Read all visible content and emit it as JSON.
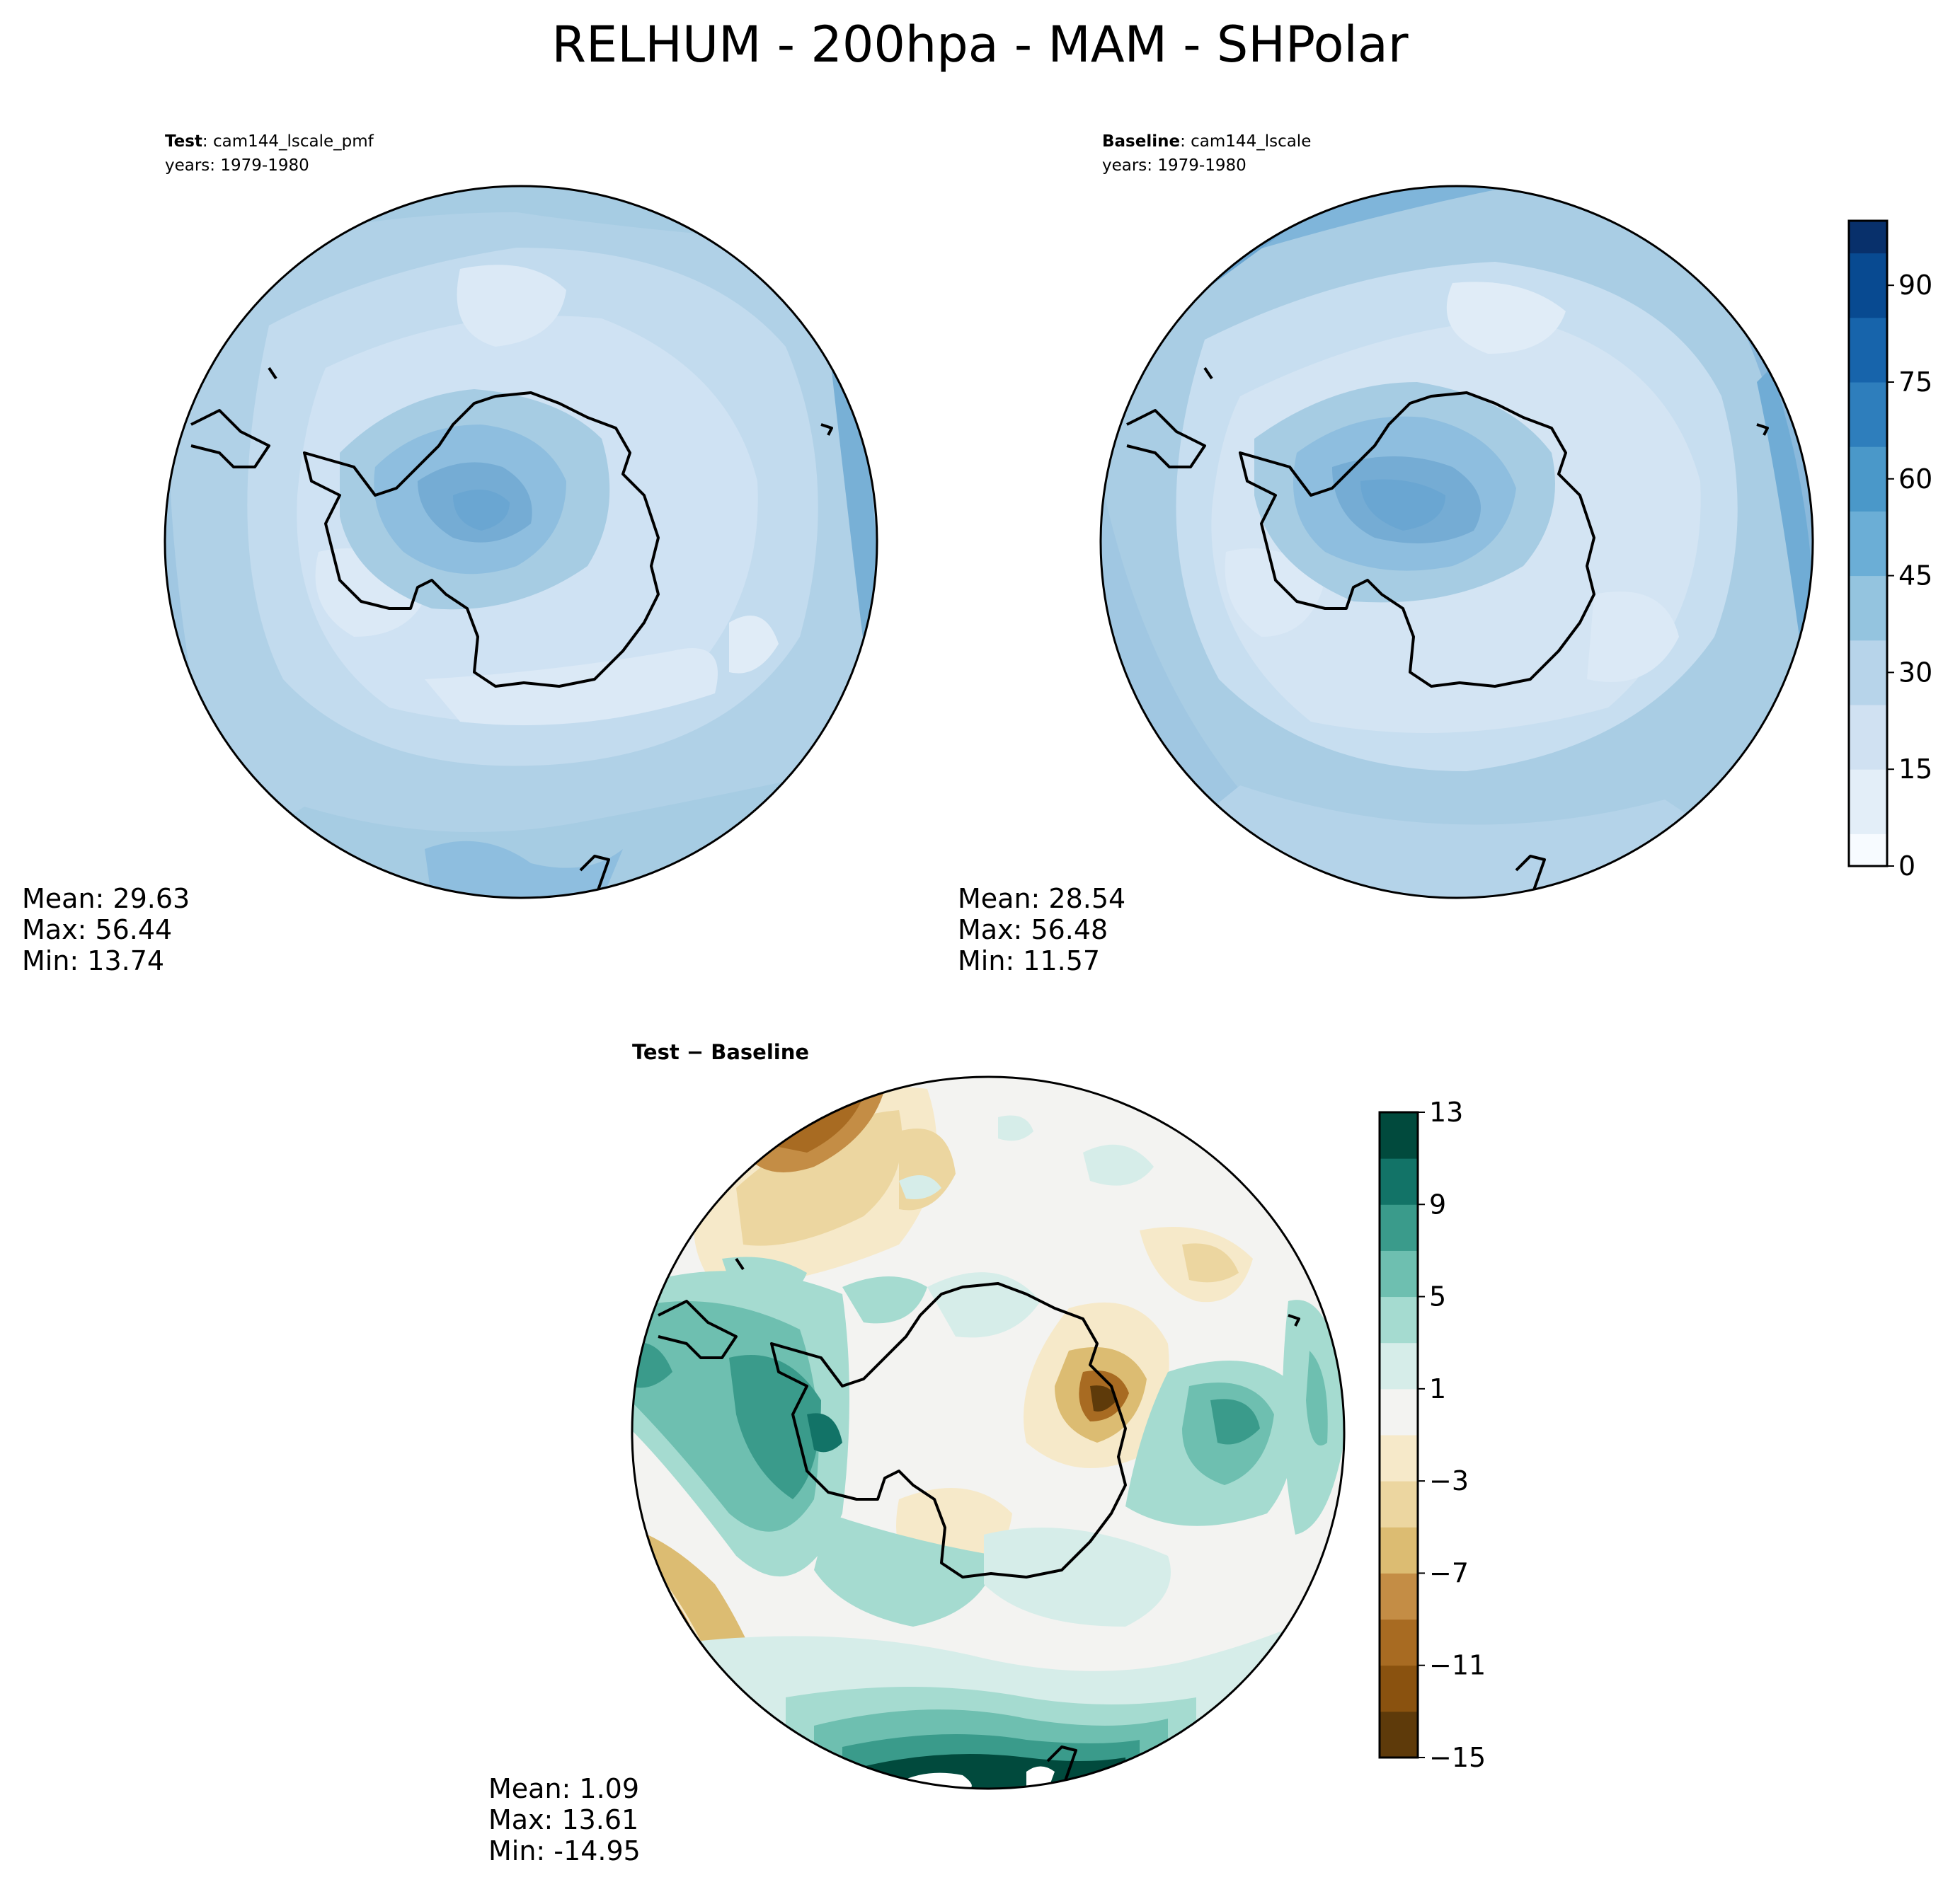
{
  "figure": {
    "title": "RELHUM - 200hpa - MAM - SHPolar"
  },
  "panels": {
    "test": {
      "label": "Test",
      "case": ": cam144_lscale_pmf",
      "years": "years: 1979-1980",
      "mean": "Mean: 29.63",
      "max": "Max: 56.44",
      "min": "Min: 13.74"
    },
    "baseline": {
      "label": "Baseline",
      "case": ": cam144_lscale",
      "years": "years: 1979-1980",
      "mean": "Mean: 28.54",
      "max": "Max: 56.48",
      "min": "Min: 11.57"
    },
    "diff": {
      "label": "Test − Baseline",
      "mean": "Mean:  1.09",
      "max": "Max: 13.61",
      "min": "Min: -14.95"
    }
  },
  "colorbars": {
    "field": {
      "ticks": [
        "0",
        "15",
        "30",
        "45",
        "60",
        "75",
        "90"
      ],
      "range": [
        0,
        100
      ],
      "levels": 20,
      "colors": [
        "#f7fbff",
        "#e3eef8",
        "#d0e1f2",
        "#b7d4ea",
        "#94c4df",
        "#6baed6",
        "#4a98c9",
        "#2e7ebc",
        "#1764ab",
        "#084a91",
        "#08306b"
      ]
    },
    "diff": {
      "ticks": [
        "13",
        "9",
        "5",
        "1",
        "−3",
        "−7",
        "−11",
        "−15"
      ],
      "range": [
        -15,
        13
      ],
      "levels": 14,
      "colors": [
        "#5e3a0a",
        "#8a520f",
        "#a86b22",
        "#c48d45",
        "#dcbc72",
        "#ecd6a0",
        "#f6e9c9",
        "#f3f3f1",
        "#d6ede9",
        "#a5dbd0",
        "#6ebfb0",
        "#3a9b8b",
        "#127367",
        "#014a3d"
      ]
    }
  }
}
